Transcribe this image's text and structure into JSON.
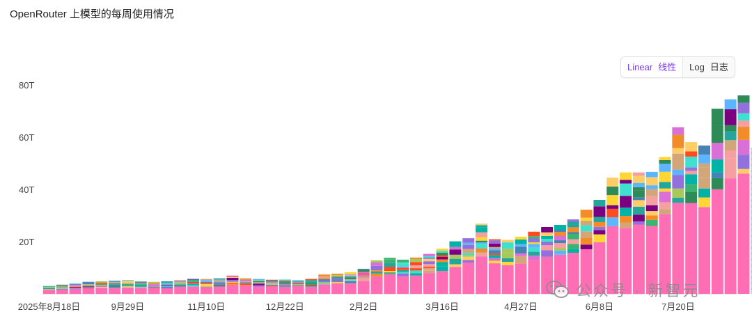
{
  "title": "OpenRouter 上模型的每周使用情况",
  "scale_toggle": {
    "linear_en": "Linear",
    "linear_zh": "线性",
    "log_en": "Log",
    "log_zh": "日志",
    "active": "linear"
  },
  "watermark": {
    "text": "公众号 · 新智元",
    "icon": "wechat-icon"
  },
  "chart_data": {
    "type": "bar",
    "stacked": true,
    "title": "OpenRouter 上模型的每周使用情况",
    "xlabel": "",
    "ylabel": "",
    "yunit": "T",
    "ylim": [
      0,
      80
    ],
    "yticks": [
      20,
      40,
      60,
      80
    ],
    "ytick_labels": [
      "20T",
      "40T",
      "60T",
      "80T"
    ],
    "xtick_labels": [
      {
        "index": 0,
        "label": "2025年8月18日"
      },
      {
        "index": 6,
        "label": "9月29日"
      },
      {
        "index": 12,
        "label": "11月10日"
      },
      {
        "index": 18,
        "label": "12月22日"
      },
      {
        "index": 24,
        "label": "2月2日"
      },
      {
        "index": 30,
        "label": "3月16日"
      },
      {
        "index": 36,
        "label": "4月27日"
      },
      {
        "index": 42,
        "label": "6月8日"
      },
      {
        "index": 48,
        "label": "7月20日"
      }
    ],
    "segment_colors": [
      "#ff6eb4",
      "#3cb371",
      "#2e8b57",
      "#00b3a4",
      "#ffd633",
      "#f28c28",
      "#ff4b1f",
      "#a6c95a",
      "#4682b4",
      "#7b0080",
      "#d2a679",
      "#da70d6",
      "#40e0d0",
      "#9370db",
      "#f4a0a0",
      "#ffcc66",
      "#5bb6ff",
      "#26a69a"
    ],
    "weekly_totals_T": [
      3.0,
      3.6,
      4.0,
      4.6,
      4.8,
      5.0,
      5.2,
      4.7,
      4.6,
      4.8,
      5.3,
      5.7,
      5.7,
      5.9,
      7.0,
      6.0,
      5.7,
      5.4,
      5.5,
      5.2,
      5.7,
      7.4,
      7.7,
      8.3,
      9.6,
      12.8,
      13.8,
      13.1,
      13.9,
      15.3,
      17.3,
      20.1,
      21.3,
      26.9,
      20.9,
      20.7,
      21.9,
      23.8,
      25.6,
      26.4,
      28.5,
      32.2,
      36.0,
      44.5,
      46.5,
      46.5,
      46.7,
      52.4,
      63.8,
      58.1,
      56.8,
      70.9,
      74.5,
      76.0,
      56.0
    ],
    "last_bar_projected": true
  }
}
